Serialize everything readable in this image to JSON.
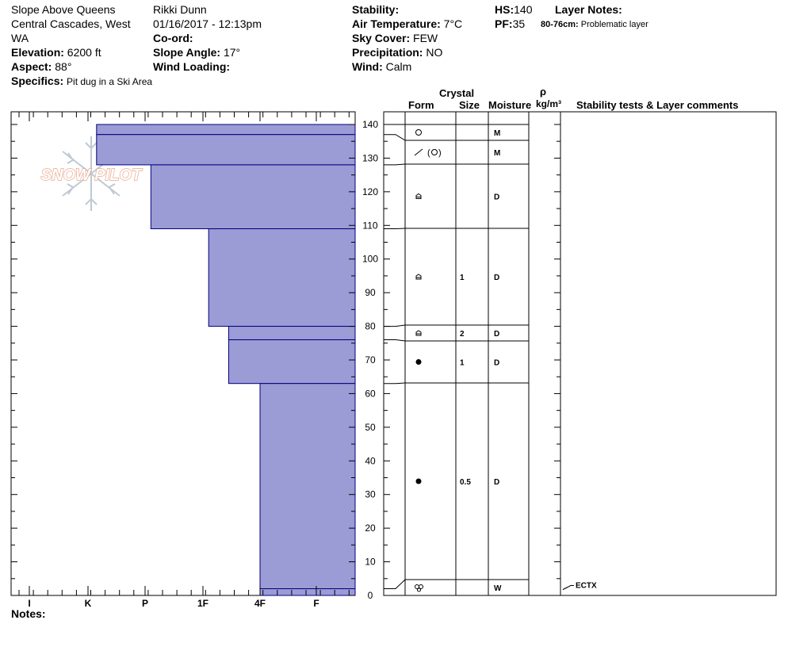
{
  "header": {
    "location_line1": "Slope Above Queens",
    "location_line2": "Central Cascades, West",
    "location_line3": "WA",
    "elevation_label": "Elevation:",
    "elevation_value": "6200 ft",
    "aspect_label": "Aspect:",
    "aspect_value": "88°",
    "specifics_label": "Specifics:",
    "specifics_value": "Pit dug in a Ski Area",
    "observer": "Rikki Dunn",
    "datetime": "01/16/2017 - 12:13pm",
    "coord_label": "Co-ord:",
    "slope_label": "Slope Angle:",
    "slope_value": "17°",
    "wind_loading_label": "Wind Loading:",
    "stability_label": "Stability:",
    "air_temp_label": "Air Temperature:",
    "air_temp_value": "7°C",
    "sky_label": "Sky Cover:",
    "sky_value": "FEW",
    "precip_label": "Precipitation:",
    "precip_value": "NO",
    "wind_label": "Wind:",
    "wind_value": "Calm",
    "hs_label": "HS:",
    "hs_value": "140",
    "pf_label": "PF:",
    "pf_value": "35",
    "layer_notes_label": "Layer Notes:",
    "layer_note_range": "80-76cm:",
    "layer_note_text": "Problematic layer"
  },
  "logo_text": "SNOW PILOT",
  "columns": {
    "crystal": "Crystal",
    "form": "Form",
    "size": "Size",
    "moisture": "Moisture",
    "rho": "ρ",
    "density_unit": "kg/m³",
    "stability": "Stability tests & Layer comments"
  },
  "notes_label": "Notes:",
  "colors": {
    "fill": "#9b9bd6",
    "line": "#000080"
  },
  "chart_data": {
    "type": "bar",
    "orientation": "horizontal-step",
    "hardness_scale": [
      "I",
      "K",
      "P",
      "1F",
      "4F",
      "F"
    ],
    "depth_axis": {
      "min": 0,
      "max": 140,
      "ticks": [
        0,
        10,
        20,
        30,
        40,
        50,
        60,
        70,
        80,
        90,
        100,
        110,
        120,
        130,
        140
      ]
    },
    "layers": [
      {
        "top": 140,
        "bottom": 137,
        "hardness": 1.15,
        "form": "circle",
        "size": "",
        "moisture": "M"
      },
      {
        "top": 137,
        "bottom": 128,
        "hardness": 1.15,
        "form": "slash-paren-circle",
        "size": "",
        "moisture": "M"
      },
      {
        "top": 128,
        "bottom": 109,
        "hardness": 2.1,
        "form": "faceted",
        "size": "",
        "moisture": "D"
      },
      {
        "top": 109,
        "bottom": 80,
        "hardness": 3.1,
        "form": "faceted",
        "size": "1",
        "moisture": "D"
      },
      {
        "top": 80,
        "bottom": 76,
        "hardness": 3.45,
        "form": "faceted",
        "size": "2",
        "moisture": "D"
      },
      {
        "top": 76,
        "bottom": 63,
        "hardness": 3.45,
        "form": "rounded-dot",
        "size": "1",
        "moisture": "D"
      },
      {
        "top": 63,
        "bottom": 2,
        "hardness": 4.0,
        "form": "rounded-dot",
        "size": "0.5",
        "moisture": "D"
      },
      {
        "top": 2,
        "bottom": 0,
        "hardness": 4.0,
        "form": "melt-freeze",
        "size": "",
        "moisture": "W"
      }
    ],
    "stability_tests": [
      {
        "depth": 2,
        "label": "ECTX"
      }
    ]
  }
}
